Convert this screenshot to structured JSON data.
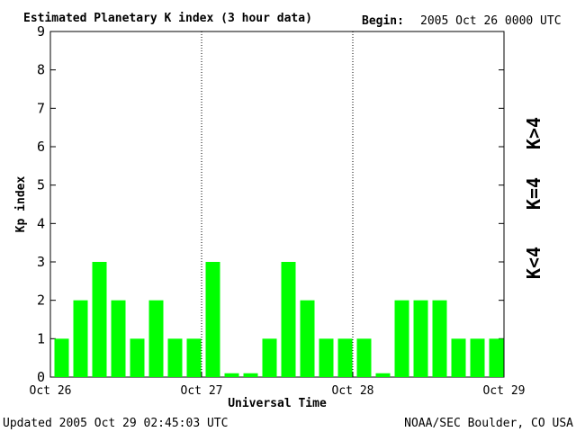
{
  "header": {
    "title": "Estimated Planetary K index (3 hour data)",
    "begin_label": "Begin:",
    "begin_value": "2005 Oct 26 0000 UTC"
  },
  "footer": {
    "updated": "Updated 2005 Oct 29 02:45:03 UTC",
    "credit": "NOAA/SEC Boulder, CO USA"
  },
  "legend": {
    "gt4": "K>4",
    "eq4": "K=4",
    "lt4": "K<4"
  },
  "colors": {
    "lt4": "#00ff00",
    "eq4": "#ffd700",
    "gt4": "#ff2a00"
  },
  "chart_data": {
    "type": "bar",
    "title": "Estimated Planetary K index (3 hour data)",
    "xlabel": "Universal Time",
    "ylabel": "Kp index",
    "ylim": [
      0,
      9
    ],
    "yticks": [
      "0",
      "1",
      "2",
      "3",
      "4",
      "5",
      "6",
      "7",
      "8",
      "9"
    ],
    "xticks": [
      "Oct 26",
      "Oct 27",
      "Oct 28",
      "Oct 29"
    ],
    "values": [
      1,
      2,
      3,
      2,
      1,
      2,
      1,
      1,
      3,
      0.1,
      0.1,
      1,
      3,
      2,
      1,
      1,
      1,
      0.1,
      2,
      2,
      2,
      1,
      1,
      1
    ]
  }
}
